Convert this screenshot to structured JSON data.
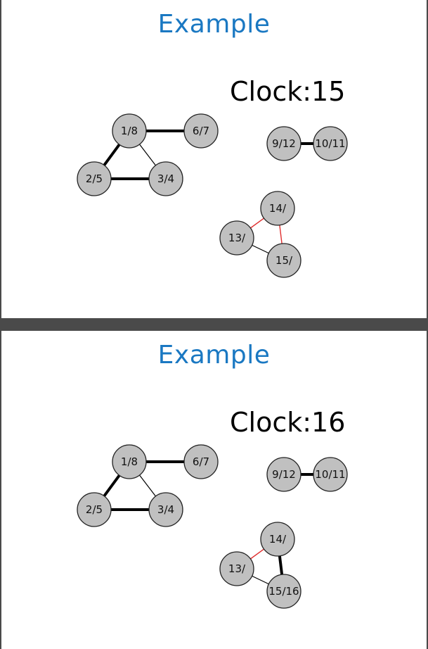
{
  "colors": {
    "title": "#1a78c2",
    "node_fill": "#c0c0c0",
    "edge_red": "#e03030",
    "edge_black": "#000000",
    "background": "#4a4a4a"
  },
  "slides": [
    {
      "title": "Example",
      "clock_label": "Clock:15",
      "nodes": [
        {
          "id": "n1",
          "label": "1/8"
        },
        {
          "id": "n6",
          "label": "6/7"
        },
        {
          "id": "n2",
          "label": "2/5"
        },
        {
          "id": "n3",
          "label": "3/4"
        },
        {
          "id": "n9",
          "label": "9/12"
        },
        {
          "id": "n10",
          "label": "10/11"
        },
        {
          "id": "n14",
          "label": "14/"
        },
        {
          "id": "n13",
          "label": "13/"
        },
        {
          "id": "n15",
          "label": "15/"
        }
      ],
      "edges": [
        {
          "from": "n1",
          "to": "n6",
          "style": "thick"
        },
        {
          "from": "n1",
          "to": "n2",
          "style": "thick"
        },
        {
          "from": "n1",
          "to": "n3",
          "style": "thin"
        },
        {
          "from": "n2",
          "to": "n3",
          "style": "thick"
        },
        {
          "from": "n9",
          "to": "n10",
          "style": "thick"
        },
        {
          "from": "n13",
          "to": "n14",
          "style": "red"
        },
        {
          "from": "n14",
          "to": "n15",
          "style": "red"
        },
        {
          "from": "n13",
          "to": "n15",
          "style": "thin"
        }
      ]
    },
    {
      "title": "Example",
      "clock_label": "Clock:16",
      "nodes": [
        {
          "id": "n1",
          "label": "1/8"
        },
        {
          "id": "n6",
          "label": "6/7"
        },
        {
          "id": "n2",
          "label": "2/5"
        },
        {
          "id": "n3",
          "label": "3/4"
        },
        {
          "id": "n9",
          "label": "9/12"
        },
        {
          "id": "n10",
          "label": "10/11"
        },
        {
          "id": "n14",
          "label": "14/"
        },
        {
          "id": "n13",
          "label": "13/"
        },
        {
          "id": "n15",
          "label": "15/16"
        }
      ],
      "edges": [
        {
          "from": "n1",
          "to": "n6",
          "style": "thick"
        },
        {
          "from": "n1",
          "to": "n2",
          "style": "thick"
        },
        {
          "from": "n1",
          "to": "n3",
          "style": "thin"
        },
        {
          "from": "n2",
          "to": "n3",
          "style": "thick"
        },
        {
          "from": "n9",
          "to": "n10",
          "style": "thick"
        },
        {
          "from": "n13",
          "to": "n14",
          "style": "red"
        },
        {
          "from": "n14",
          "to": "n15",
          "style": "thick"
        },
        {
          "from": "n13",
          "to": "n15",
          "style": "thin"
        }
      ]
    }
  ]
}
